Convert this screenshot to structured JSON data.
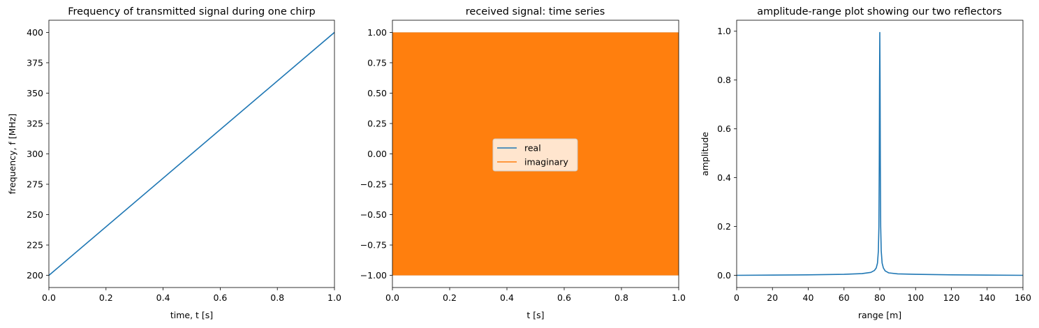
{
  "chart_data": [
    {
      "type": "line",
      "title": "Frequency of transmitted signal during one chirp",
      "xlabel": "time, t [s]",
      "ylabel": "frequency, f [MHz]",
      "xlim": [
        0,
        1
      ],
      "ylim": [
        190,
        410
      ],
      "x_ticks": [
        0.0,
        0.2,
        0.4,
        0.6,
        0.8,
        1.0
      ],
      "x_tick_labels": [
        "0.0",
        "0.2",
        "0.4",
        "0.6",
        "0.8",
        "1.0"
      ],
      "y_ticks": [
        200,
        225,
        250,
        275,
        300,
        325,
        350,
        375,
        400
      ],
      "y_tick_labels": [
        "200",
        "225",
        "250",
        "275",
        "300",
        "325",
        "350",
        "375",
        "400"
      ],
      "grid": false,
      "series": [
        {
          "color": "#1f77b4",
          "x": [
            0,
            1
          ],
          "y": [
            200,
            400
          ]
        }
      ]
    },
    {
      "type": "line",
      "title": "received signal: time series",
      "xlabel": "t [s]",
      "ylabel": "",
      "xlim": [
        0,
        1
      ],
      "ylim": [
        -1.1,
        1.1
      ],
      "x_ticks": [
        0.0,
        0.2,
        0.4,
        0.6,
        0.8,
        1.0
      ],
      "x_tick_labels": [
        "0.0",
        "0.2",
        "0.4",
        "0.6",
        "0.8",
        "1.0"
      ],
      "y_ticks": [
        -1.0,
        -0.75,
        -0.5,
        -0.25,
        0.0,
        0.25,
        0.5,
        0.75,
        1.0
      ],
      "y_tick_labels": [
        "−1.00",
        "−0.75",
        "−0.50",
        "−0.25",
        "0.00",
        "0.25",
        "0.50",
        "0.75",
        "1.00"
      ],
      "grid": false,
      "legend": {
        "placement": "center"
      },
      "series": [
        {
          "name": "real",
          "color": "#1f77b4",
          "y_range": [
            -1,
            1
          ],
          "oscillating": true
        },
        {
          "name": "imaginary",
          "color": "#ff7f0e",
          "y_range": [
            -1,
            1
          ],
          "oscillating": true
        }
      ]
    },
    {
      "type": "line",
      "title": "amplitude-range plot showing our two reflectors",
      "xlabel": "range [m]",
      "ylabel": "amplitude",
      "xlim": [
        0,
        160
      ],
      "ylim": [
        -0.05,
        1.045
      ],
      "x_ticks": [
        0,
        20,
        40,
        60,
        80,
        100,
        120,
        140,
        160
      ],
      "x_tick_labels": [
        "0",
        "20",
        "40",
        "60",
        "80",
        "100",
        "120",
        "140",
        "160"
      ],
      "y_ticks": [
        0.0,
        0.2,
        0.4,
        0.6,
        0.8,
        1.0
      ],
      "y_tick_labels": [
        "0.0",
        "0.2",
        "0.4",
        "0.6",
        "0.8",
        "1.0"
      ],
      "grid": false,
      "series": [
        {
          "color": "#1f77b4",
          "x": [
            0,
            20,
            40,
            60,
            70,
            75,
            77,
            78,
            78.7,
            79.2,
            79.5,
            79.7,
            79.85,
            80.0,
            80.15,
            80.3,
            80.5,
            80.8,
            81.3,
            82,
            83,
            85,
            90,
            100,
            120,
            140,
            160
          ],
          "y": [
            0.0,
            0.001,
            0.002,
            0.004,
            0.007,
            0.012,
            0.02,
            0.03,
            0.05,
            0.1,
            0.2,
            0.45,
            0.8,
            0.995,
            0.8,
            0.45,
            0.2,
            0.1,
            0.05,
            0.03,
            0.018,
            0.01,
            0.006,
            0.004,
            0.002,
            0.001,
            0.0
          ]
        }
      ]
    }
  ]
}
